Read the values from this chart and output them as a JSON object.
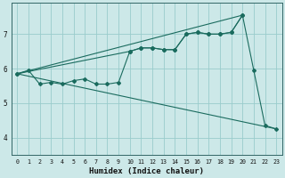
{
  "xlabel": "Humidex (Indice chaleur)",
  "bg_color": "#cce8e8",
  "grid_color": "#99cccc",
  "line_color": "#1a6b5e",
  "xlim": [
    -0.5,
    23.5
  ],
  "ylim": [
    3.5,
    7.9
  ],
  "yticks": [
    4,
    5,
    6,
    7
  ],
  "xticks": [
    0,
    1,
    2,
    3,
    4,
    5,
    6,
    7,
    8,
    9,
    10,
    11,
    12,
    13,
    14,
    15,
    16,
    17,
    18,
    19,
    20,
    21,
    22,
    23
  ],
  "series": [
    {
      "x": [
        0,
        1,
        2,
        3,
        4,
        5,
        6,
        7,
        8,
        9,
        10,
        11,
        12,
        13,
        14,
        15,
        16,
        17,
        18,
        19,
        20,
        21,
        22,
        23
      ],
      "y": [
        5.85,
        5.95,
        5.55,
        5.6,
        5.55,
        5.65,
        5.7,
        5.55,
        5.55,
        5.6,
        6.5,
        6.6,
        6.6,
        6.55,
        6.55,
        7.0,
        7.05,
        7.0,
        7.0,
        7.05,
        7.55,
        5.95,
        4.35,
        4.25
      ],
      "linestyle": "-",
      "has_markers": true
    },
    {
      "x": [
        0,
        20
      ],
      "y": [
        5.85,
        7.55
      ],
      "linestyle": "-",
      "has_markers": false
    },
    {
      "x": [
        0,
        23
      ],
      "y": [
        5.85,
        4.25
      ],
      "linestyle": "-",
      "has_markers": false
    },
    {
      "x": [
        0,
        10,
        11,
        12,
        13,
        14,
        15,
        16,
        17,
        18,
        19,
        20
      ],
      "y": [
        5.85,
        6.5,
        6.6,
        6.6,
        6.55,
        6.55,
        7.0,
        7.05,
        7.0,
        7.0,
        7.05,
        7.55
      ],
      "linestyle": "-",
      "has_markers": true
    }
  ]
}
